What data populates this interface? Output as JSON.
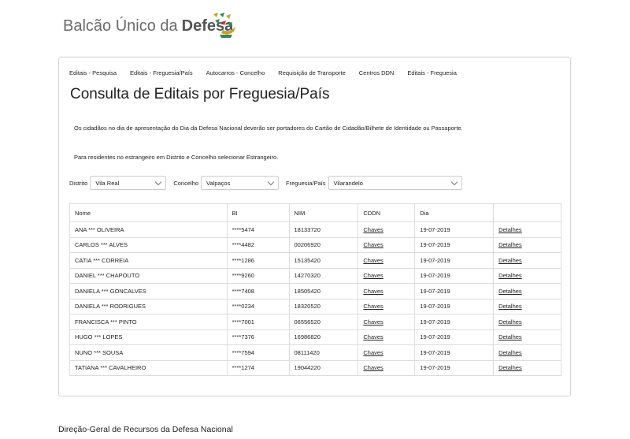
{
  "header": {
    "title_regular": "Balcão Único da",
    "title_bold": "Defesa"
  },
  "nav": [
    "Editais - Pesquisa",
    "Editais - Freguesia/País",
    "Autocarros - Concelho",
    "Requisição de Transporte",
    "Centros DDN",
    "Editais - Freguesia"
  ],
  "page_title": "Consulta de Editais por Freguesia/País",
  "notices": [
    "Os cidadãos no dia de apresentação do Dia da Defesa Nacional deverão ser portadores do Cartão de Cidadão/Bilhete de Identidade ou Passaporte.",
    "Para residentes no estrangeiro em Distrito e Concelho selecionar Estrangeiro."
  ],
  "filters": [
    {
      "label": "Distrito",
      "value": "Vila Real"
    },
    {
      "label": "Concelho",
      "value": "Valpaços"
    },
    {
      "label": "Freguesia/País",
      "value": "Vilarandelo"
    }
  ],
  "table": {
    "headers": [
      "Nome",
      "BI",
      "NIM",
      "CDDN",
      "Dia"
    ],
    "rows": [
      [
        "ANA *** OLIVEIRA",
        "****5474",
        "18133720",
        "Chaves",
        "19-07-2019",
        "Detalhes"
      ],
      [
        "CARLOS *** ALVES",
        "****4482",
        "00206920",
        "Chaves",
        "19-07-2019",
        "Detalhes"
      ],
      [
        "CATIA *** CORREIA",
        "****1286",
        "15135420",
        "Chaves",
        "19-07-2019",
        "Detalhes"
      ],
      [
        "DANIEL *** CHAPOUTO",
        "****9260",
        "14270320",
        "Chaves",
        "19-07-2019",
        "Detalhes"
      ],
      [
        "DANIELA *** GONCALVES",
        "****7408",
        "18505420",
        "Chaves",
        "19-07-2019",
        "Detalhes"
      ],
      [
        "DANIELA *** RODRIGUES",
        "****0234",
        "18320520",
        "Chaves",
        "19-07-2019",
        "Detalhes"
      ],
      [
        "FRANCISCA *** PINTO",
        "****7001",
        "06556520",
        "Chaves",
        "19-07-2019",
        "Detalhes"
      ],
      [
        "HUGO *** LOPES",
        "****7376",
        "16986820",
        "Chaves",
        "19-07-2019",
        "Detalhes"
      ],
      [
        "NUNO *** SOUSA",
        "****7594",
        "08111420",
        "Chaves",
        "19-07-2019",
        "Detalhes"
      ],
      [
        "TATIANA *** CAVALHEIRO",
        "****1274",
        "19044220",
        "Chaves",
        "19-07-2019",
        "Detalhes"
      ]
    ]
  },
  "footer": "Direção-Geral de Recursos da Defesa Nacional"
}
